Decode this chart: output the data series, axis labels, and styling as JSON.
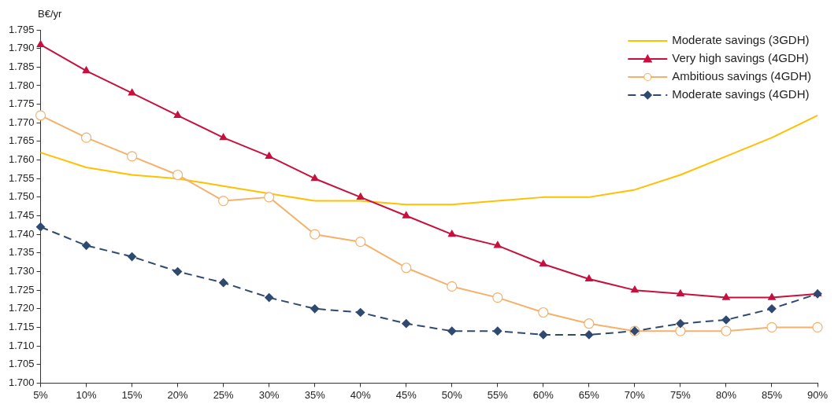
{
  "chart_data": {
    "type": "line",
    "ylabel": "B€/yr",
    "categories": [
      "5%",
      "10%",
      "15%",
      "20%",
      "25%",
      "30%",
      "35%",
      "40%",
      "45%",
      "50%",
      "55%",
      "60%",
      "65%",
      "70%",
      "75%",
      "80%",
      "85%",
      "90%"
    ],
    "series": [
      {
        "name": "Moderate savings (3GDH)",
        "color": "#ffc000",
        "marker": "none",
        "line_style": "solid",
        "values": [
          1.762,
          1.758,
          1.756,
          1.755,
          1.753,
          1.751,
          1.749,
          1.749,
          1.748,
          1.748,
          1.749,
          1.75,
          1.75,
          1.752,
          1.756,
          1.761,
          1.766,
          1.772
        ]
      },
      {
        "name": "Very high savings (4GDH)",
        "color": "#c8103e",
        "marker": "triangle",
        "line_style": "solid",
        "values": [
          1.791,
          1.784,
          1.778,
          1.772,
          1.766,
          1.761,
          1.755,
          1.75,
          1.745,
          1.74,
          1.737,
          1.732,
          1.728,
          1.725,
          1.724,
          1.723,
          1.723,
          1.724
        ]
      },
      {
        "name": "Ambitious savings (4GDH)",
        "color": "#f5b06a",
        "marker": "circle",
        "line_style": "solid",
        "values": [
          1.772,
          1.766,
          1.761,
          1.756,
          1.749,
          1.75,
          1.74,
          1.738,
          1.731,
          1.726,
          1.723,
          1.719,
          1.716,
          1.714,
          1.714,
          1.714,
          1.715,
          1.715
        ]
      },
      {
        "name": "Moderate savings (4GDH)",
        "color": "#2f4a70",
        "marker": "diamond",
        "line_style": "dashed",
        "values": [
          1.742,
          1.737,
          1.734,
          1.73,
          1.727,
          1.723,
          1.72,
          1.719,
          1.716,
          1.714,
          1.714,
          1.713,
          1.713,
          1.714,
          1.716,
          1.717,
          1.72,
          1.724
        ]
      }
    ],
    "ylim": [
      1.7,
      1.795
    ],
    "yticks": [
      {
        "value": 1.7,
        "label": "1.700"
      },
      1.705,
      {
        "value": 1.71,
        "label": "1.710"
      },
      1.715,
      {
        "value": 1.72,
        "label": "1.720"
      },
      1.725,
      {
        "value": 1.73,
        "label": "1.730"
      },
      1.735,
      {
        "value": 1.74,
        "label": "1.740"
      },
      1.745,
      {
        "value": 1.75,
        "label": "1.750"
      },
      1.755,
      {
        "value": 1.76,
        "label": "1.760"
      },
      1.765,
      {
        "value": 1.77,
        "label": "1.770"
      },
      1.775,
      {
        "value": 1.78,
        "label": "1.780"
      },
      1.785,
      {
        "value": 1.79,
        "label": "1.790"
      },
      1.795
    ],
    "grid": false,
    "legend": "top right"
  }
}
